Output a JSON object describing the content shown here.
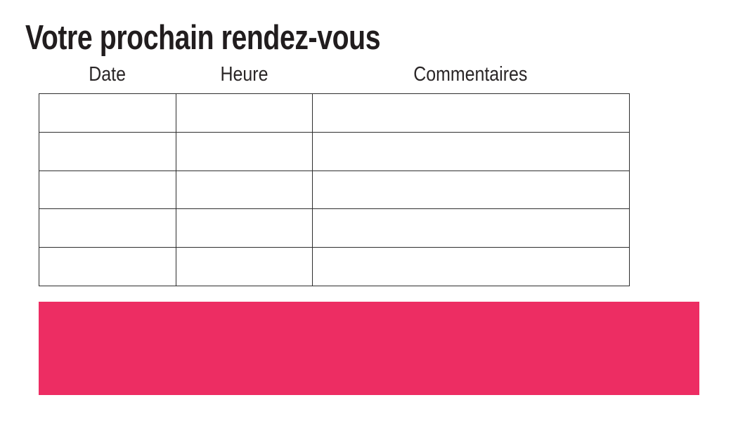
{
  "page": {
    "title": "Votre prochain rendez-vous"
  },
  "table": {
    "columns": [
      {
        "label": "Date"
      },
      {
        "label": "Heure"
      },
      {
        "label": "Commentaires"
      }
    ],
    "rows": [
      [
        "",
        "",
        ""
      ],
      [
        "",
        "",
        ""
      ],
      [
        "",
        "",
        ""
      ],
      [
        "",
        "",
        ""
      ],
      [
        "",
        "",
        ""
      ]
    ]
  },
  "colors": {
    "accent_pink": "#ED2D63",
    "table_border": "#2E2E2E",
    "title_text": "#211D1E",
    "header_text": "#2A2627",
    "background": "#FFFFFF"
  }
}
